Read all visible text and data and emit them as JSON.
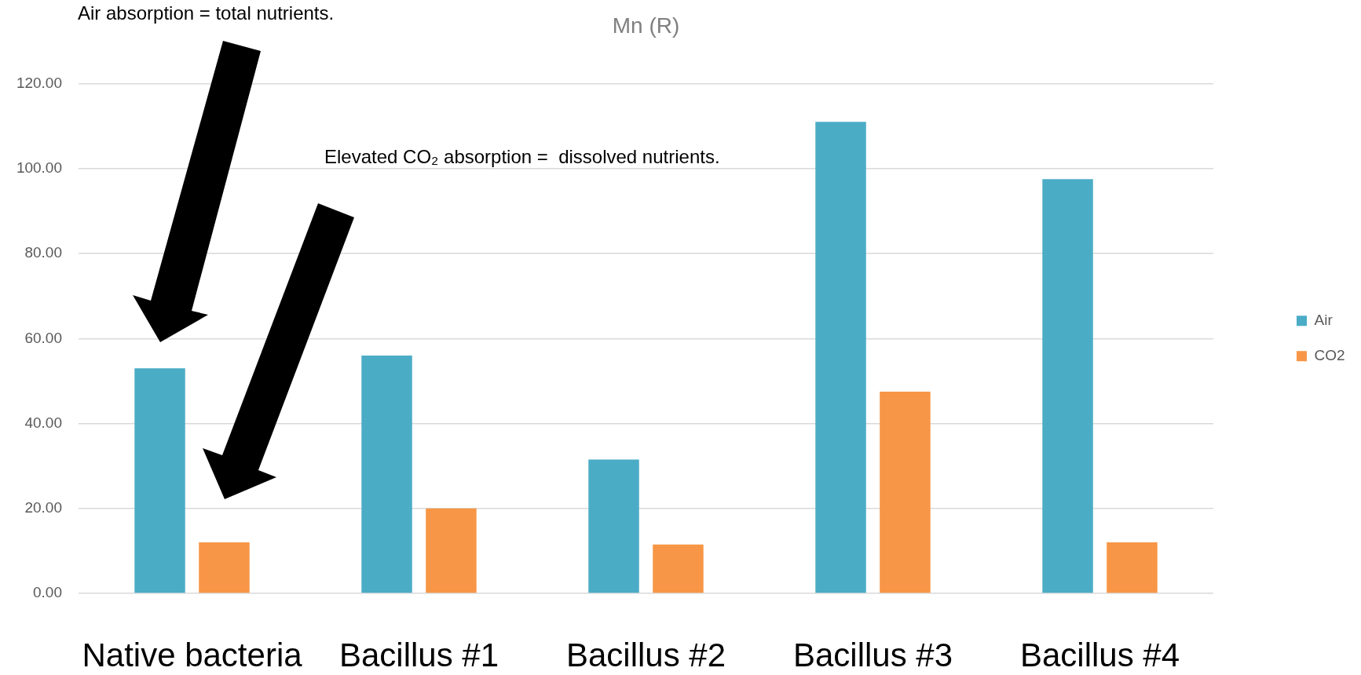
{
  "chart_data": {
    "type": "bar",
    "title": "Mn (R)",
    "categories": [
      "Native bacteria",
      "Bacillus #1",
      "Bacillus #2",
      "Bacillus #3",
      "Bacillus #4"
    ],
    "series": [
      {
        "name": "Air",
        "color": "#4bacc6",
        "values": [
          53,
          56,
          31.5,
          111,
          97.5
        ]
      },
      {
        "name": "CO2",
        "color": "#f79646",
        "values": [
          12,
          20,
          11.5,
          47.5,
          12
        ]
      }
    ],
    "ylim": [
      0,
      120
    ],
    "yticks": [
      {
        "value": 0,
        "label": "0.00"
      },
      {
        "value": 20,
        "label": "20.00"
      },
      {
        "value": 40,
        "label": "40.00"
      },
      {
        "value": 60,
        "label": "60.00"
      },
      {
        "value": 80,
        "label": "80.00"
      },
      {
        "value": 100,
        "label": "100.00"
      },
      {
        "value": 120,
        "label": "120.00"
      }
    ],
    "grid": "y",
    "legend": "right",
    "annotations": [
      "Air absorption = total nutrients.",
      "Elevated CO₂ absorption =  dissolved nutrients."
    ]
  }
}
